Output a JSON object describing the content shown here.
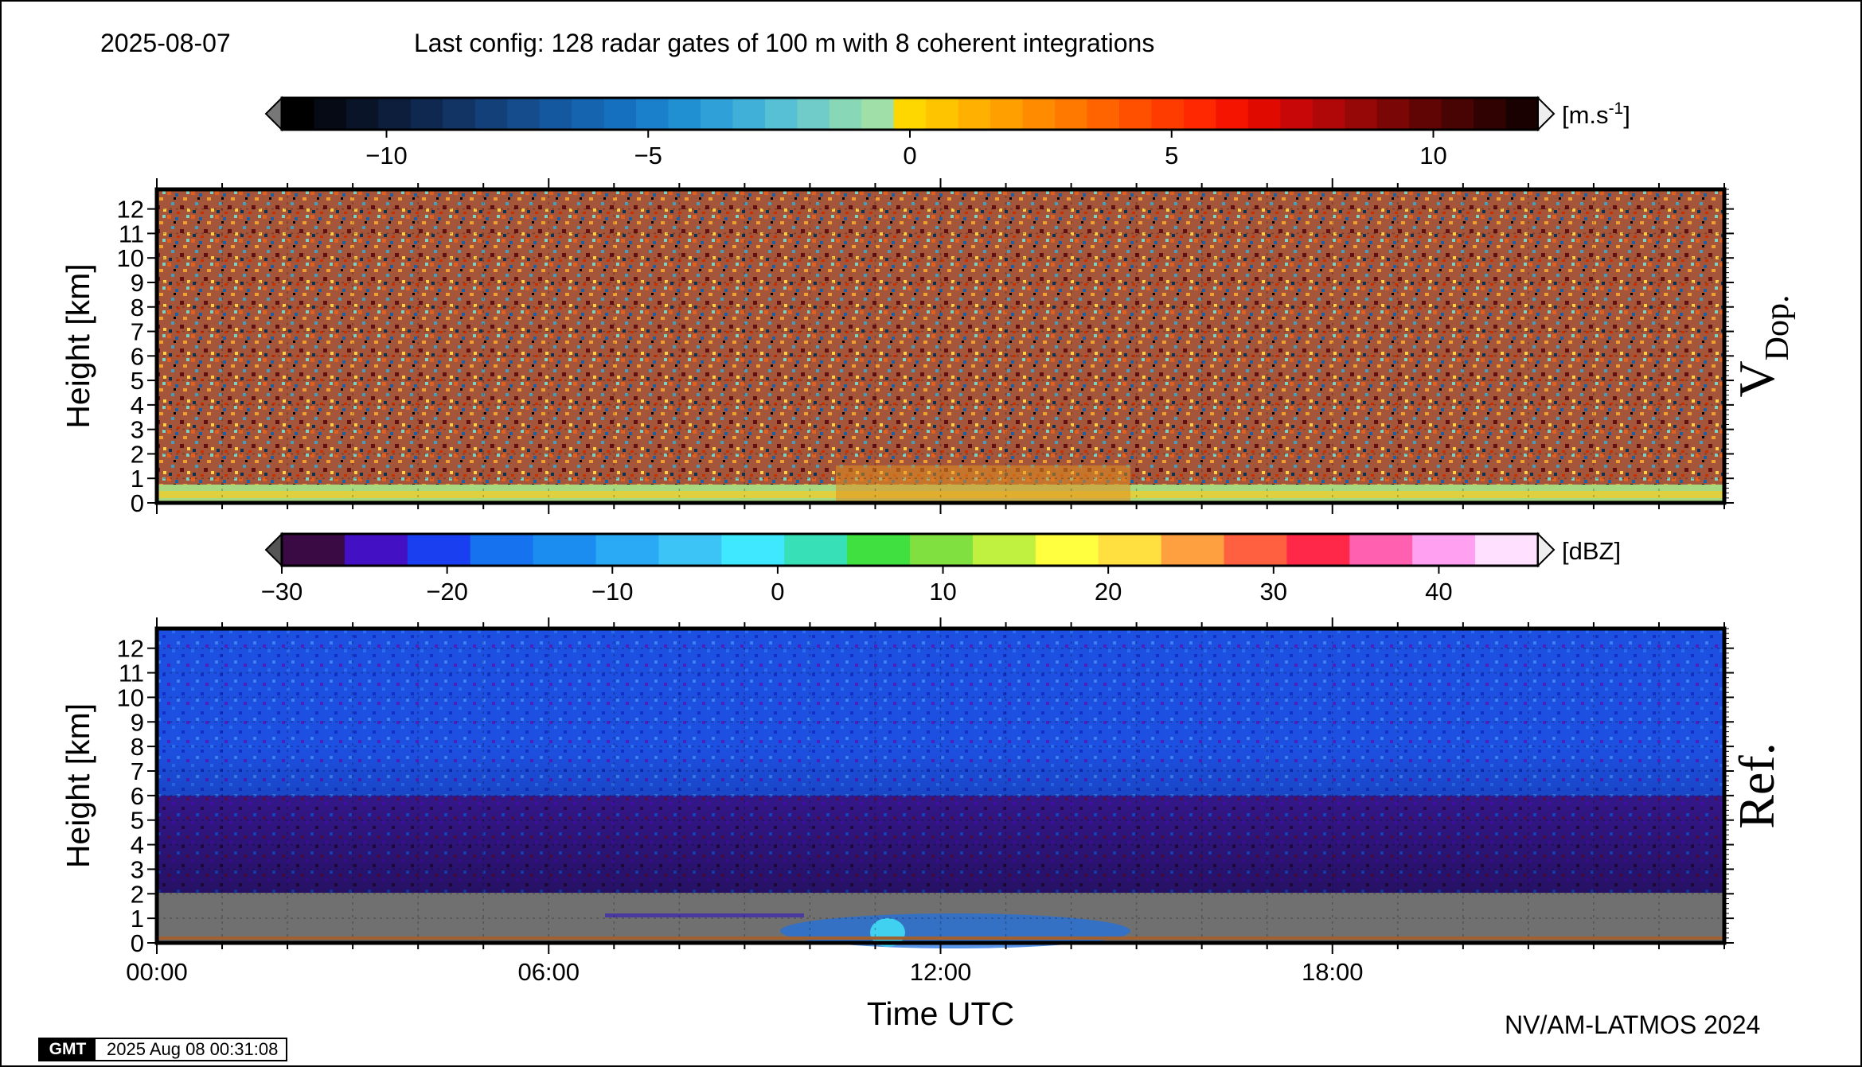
{
  "header": {
    "date": "2025-08-07",
    "config": "Last config: 128 radar gates of 100 m with 8 coherent integrations"
  },
  "footer": {
    "credit": "NV/AM-LATMOS 2024",
    "gmt_logo": "GMT",
    "gmt_timestamp": "2025 Aug 08 00:31:08"
  },
  "chart_data": [
    {
      "type": "heatmap",
      "panel": "V",
      "side_label_main": "V",
      "side_label_sub": "Dop.",
      "ylabel": "Height [km]",
      "xlabel": "",
      "ylim": [
        0,
        12.8
      ],
      "yticks": [
        0,
        1,
        2,
        3,
        4,
        5,
        6,
        7,
        8,
        9,
        10,
        11,
        12
      ],
      "xlim": [
        0,
        24
      ],
      "colorbar": {
        "unit": "[m.s",
        "unit_sup": "-1",
        "unit_close": "]",
        "range": [
          -12,
          12
        ],
        "ticks": [
          -10,
          -5,
          0,
          5,
          10
        ],
        "tick_labels": [
          "−10",
          "−5",
          "0",
          "5",
          "10"
        ],
        "colors": [
          "#000000",
          "#050a14",
          "#0a1428",
          "#0d1e3c",
          "#0f2850",
          "#113464",
          "#134078",
          "#154c8c",
          "#1458a0",
          "#1464b0",
          "#1670c0",
          "#1a80cc",
          "#2090d2",
          "#30a0d8",
          "#40b0d8",
          "#58c0d4",
          "#70ccc8",
          "#88d8b8",
          "#a0e0a8",
          "#ffd700",
          "#ffc400",
          "#ffb000",
          "#ffa000",
          "#ff8c00",
          "#ff7800",
          "#ff6400",
          "#ff5000",
          "#ff3c00",
          "#ff2800",
          "#f51400",
          "#e00a00",
          "#c80808",
          "#b00808",
          "#960808",
          "#7a0606",
          "#600404",
          "#480303",
          "#300202",
          "#1a0101"
        ]
      },
      "surface_layer": {
        "height_km": [
          0,
          0.6
        ],
        "dominant_velocity": 0
      },
      "field_description": "random velocity noise above ~1 km"
    },
    {
      "type": "heatmap",
      "panel": "Ref",
      "side_label_main": "Ref.",
      "ylabel": "Height [km]",
      "xlabel": "Time UTC",
      "ylim": [
        0,
        12.8
      ],
      "yticks": [
        0,
        1,
        2,
        3,
        4,
        5,
        6,
        7,
        8,
        9,
        10,
        11,
        12
      ],
      "xlim": [
        0,
        24
      ],
      "xticks": [
        0,
        6,
        12,
        18
      ],
      "xtick_labels": [
        "00:00",
        "06:00",
        "12:00",
        "18:00"
      ],
      "colorbar": {
        "unit": "[dBZ]",
        "range": [
          -30,
          46
        ],
        "ticks": [
          -30,
          -20,
          -10,
          0,
          10,
          20,
          30,
          40
        ],
        "tick_labels": [
          "−30",
          "−20",
          "−10",
          "0",
          "10",
          "20",
          "30",
          "40"
        ],
        "colors": [
          "#3a0a45",
          "#4410c4",
          "#1a3ff0",
          "#1672ee",
          "#1b8cf0",
          "#2aaaf5",
          "#3dc4f7",
          "#40e8ff",
          "#38e0b8",
          "#40e040",
          "#80e040",
          "#c0f040",
          "#ffff40",
          "#ffe040",
          "#ffa040",
          "#ff6040",
          "#ff2848",
          "#ff60b0",
          "#ffa0f0",
          "#ffe0ff"
        ]
      },
      "layers": [
        {
          "height_km": [
            6,
            12.8
          ],
          "dbz": -20
        },
        {
          "height_km": [
            2,
            6
          ],
          "dbz": -25
        },
        {
          "height_km": [
            0,
            2
          ],
          "dbz": "missing"
        }
      ],
      "echo_features": [
        {
          "time_h": [
            6.8,
            10.5
          ],
          "height_km": [
            0.9,
            1.2
          ],
          "dbz": -20
        },
        {
          "time_h": [
            10.5,
            15
          ],
          "height_km": [
            0,
            1.5
          ],
          "dbz": -10
        }
      ]
    }
  ]
}
